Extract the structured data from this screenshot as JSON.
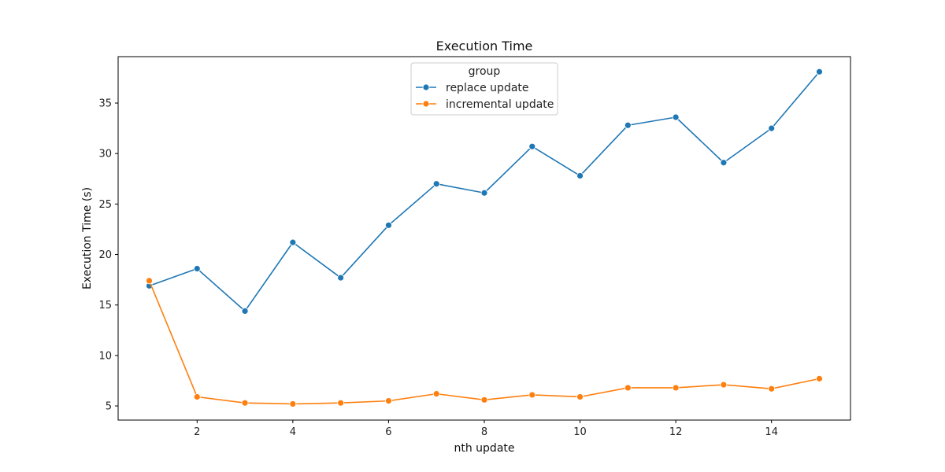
{
  "chart_data": {
    "type": "line",
    "title": "Execution Time",
    "xlabel": "nth update",
    "ylabel": "Execution Time (s)",
    "xlim": [
      0.35,
      15.65
    ],
    "ylim": [
      3.6,
      39.6
    ],
    "xticks": [
      2,
      4,
      6,
      8,
      10,
      12,
      14
    ],
    "yticks": [
      5,
      10,
      15,
      20,
      25,
      30,
      35
    ],
    "grid": false,
    "legend": {
      "title": "group",
      "position": "top-center"
    },
    "x": [
      1,
      2,
      3,
      4,
      5,
      6,
      7,
      8,
      9,
      10,
      11,
      12,
      13,
      14,
      15
    ],
    "series": [
      {
        "name": "replace update",
        "color": "#1f77b4",
        "values": [
          16.9,
          18.6,
          14.4,
          21.2,
          17.7,
          22.9,
          27.0,
          26.1,
          30.7,
          27.8,
          32.8,
          33.6,
          29.1,
          32.5,
          38.1
        ]
      },
      {
        "name": "incremental update",
        "color": "#ff7f0e",
        "values": [
          17.4,
          5.9,
          5.3,
          5.2,
          5.3,
          5.5,
          6.2,
          5.6,
          6.1,
          5.9,
          6.8,
          6.8,
          7.1,
          6.7,
          7.7
        ]
      }
    ]
  }
}
